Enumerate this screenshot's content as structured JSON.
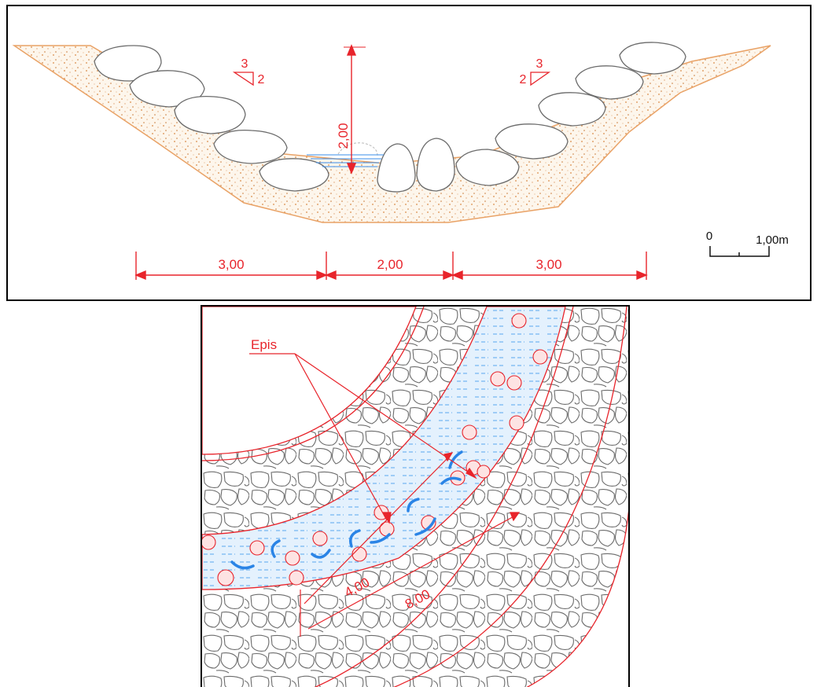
{
  "section": {
    "dim_bottom_left": "3,00",
    "dim_bottom_center": "2,00",
    "dim_bottom_right": "3,00",
    "dim_height": "2,00",
    "slope_left": {
      "rise": "3",
      "run": "2"
    },
    "slope_right": {
      "rise": "3",
      "run": "2"
    },
    "scale_zero": "0",
    "scale_label": "1,00m"
  },
  "plan": {
    "label_epis": "Epis",
    "dim_inner": "4,00",
    "dim_outer": "8,00"
  },
  "colors": {
    "red": "#e8242b",
    "soil": "#e9a266",
    "water": "#3a8ee8",
    "stone": "#6b6b6b"
  }
}
